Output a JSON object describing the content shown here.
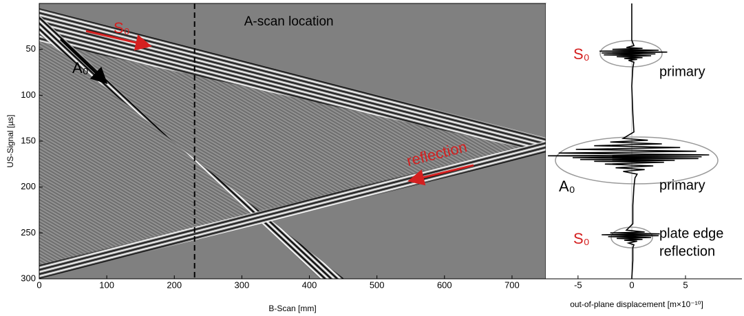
{
  "chart_data": [
    {
      "type": "image",
      "xlabel": "B-Scan [mm]",
      "ylabel": "US-Signal [µs]",
      "xlim": [
        0,
        750
      ],
      "ylim": [
        0,
        300
      ],
      "y_inverted": true,
      "xticks": [
        0,
        100,
        200,
        300,
        400,
        500,
        600,
        700
      ],
      "yticks": [
        50,
        100,
        150,
        200,
        250,
        300
      ],
      "background": "#808080",
      "annotations": [
        {
          "text": "A-scan location",
          "x": 230,
          "color": "#000000"
        },
        {
          "text": "S₀",
          "color": "#d42020"
        },
        {
          "text": "A₀",
          "color": "#000000"
        },
        {
          "text": "reflection",
          "color": "#d42020"
        }
      ]
    },
    {
      "type": "line",
      "xlabel": "out-of-plane displacement [m×10⁻¹⁰]",
      "xlim": [
        -8,
        10.25
      ],
      "ylim": [
        0,
        300
      ],
      "y_inverted": true,
      "xticks": [
        -5,
        0,
        5
      ],
      "color": "#000000",
      "y": [
        0,
        20,
        40,
        46,
        48,
        49,
        50,
        51,
        52,
        53,
        54,
        55,
        56,
        57,
        58,
        59,
        60,
        61,
        62,
        64,
        70,
        90,
        120,
        140,
        147,
        149,
        151,
        153,
        155,
        157,
        159,
        161,
        163,
        165,
        166,
        167,
        168,
        169,
        170,
        171,
        172,
        173,
        175,
        177,
        179,
        181,
        183,
        186,
        190,
        200,
        220,
        240,
        247,
        249,
        250,
        251,
        252,
        253,
        254,
        255,
        256,
        257,
        258,
        259,
        261,
        263,
        266,
        280,
        300
      ],
      "values": [
        0,
        0,
        0,
        0.2,
        -0.5,
        1,
        -1.8,
        2.5,
        -3,
        3.3,
        -2.8,
        2.2,
        -2.6,
        1.8,
        -1.4,
        1,
        -0.7,
        0.5,
        -0.3,
        0.2,
        0.1,
        0,
        0.1,
        0.2,
        -0.8,
        1.5,
        -2,
        2.8,
        -3.5,
        4.5,
        -5.2,
        6,
        -6.8,
        7.2,
        -7.8,
        6.5,
        -5.5,
        6.2,
        -4.8,
        4,
        -3.5,
        3,
        -2.5,
        2,
        -1.5,
        1.2,
        -0.8,
        0.5,
        0.3,
        0.2,
        0.1,
        0.1,
        -0.5,
        1.2,
        -2,
        2.6,
        -2.8,
        2.5,
        -2.2,
        1.8,
        -1.4,
        1,
        -0.7,
        0.5,
        -0.3,
        0.2,
        0.1,
        0.1,
        0
      ],
      "annotations": [
        {
          "text": "S₀",
          "color": "#d42020"
        },
        {
          "text": "primary",
          "color": "#000000"
        },
        {
          "text": "A₀",
          "color": "#000000"
        },
        {
          "text": "primary",
          "color": "#000000"
        },
        {
          "text": "S₀",
          "color": "#d42020"
        },
        {
          "text": "plate edge",
          "color": "#000000"
        },
        {
          "text": "reflection",
          "color": "#000000"
        }
      ]
    }
  ]
}
